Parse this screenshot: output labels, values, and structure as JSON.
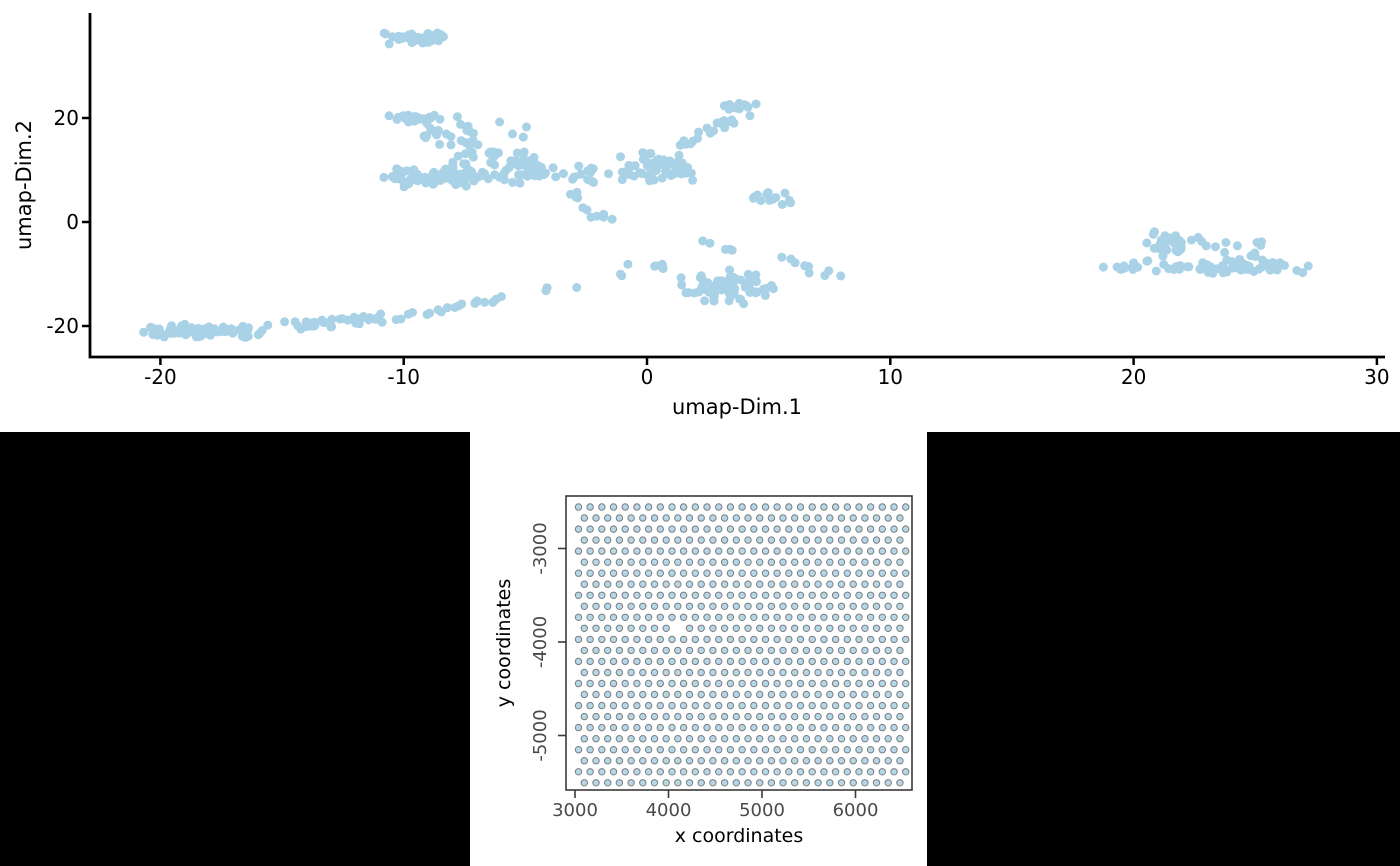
{
  "figure": {
    "description": "Two-panel scatter figure",
    "top_panel_name": "umap-embedding-scatter",
    "bottom_panel_name": "spatial-spot-grid"
  },
  "chart_data": [
    {
      "type": "scatter",
      "title": "",
      "xlabel": "umap-Dim.1",
      "ylabel": "umap-Dim.2",
      "x_ticks": [
        -20,
        -10,
        0,
        10,
        20,
        30
      ],
      "y_ticks": [
        -20,
        0,
        20
      ],
      "xlim": [
        -22.9,
        30.4
      ],
      "ylim": [
        -26,
        40.2
      ],
      "grid": false,
      "legend": false,
      "marker_color": "#a9d2e6",
      "axis_color": "#000000",
      "seed": 7,
      "clusters": [
        {
          "name": "top-blob",
          "shape": "ellipse",
          "n": 40,
          "cx": -9.4,
          "cy": 35.3,
          "rx": 1.45,
          "ry": 1.3
        },
        {
          "name": "upper-band",
          "shape": "ellipse",
          "n": 24,
          "cx": -9.7,
          "cy": 19.9,
          "rx": 1.35,
          "ry": 0.8
        },
        {
          "name": "upper-scatter",
          "shape": "box",
          "n": 20,
          "x": [
            -9.3,
            -6.9
          ],
          "y": [
            14.5,
            19.0
          ]
        },
        {
          "name": "upper-outliers",
          "shape": "box",
          "n": 8,
          "x": [
            -7.9,
            -4.7
          ],
          "y": [
            16.2,
            20.5
          ]
        },
        {
          "name": "left-band-main",
          "shape": "ellipse",
          "n": 90,
          "cx": -8.7,
          "cy": 8.6,
          "rx": 2.8,
          "ry": 2.0
        },
        {
          "name": "left-band-top",
          "shape": "box",
          "n": 26,
          "x": [
            -8.0,
            -4.6
          ],
          "y": [
            10.8,
            13.6
          ]
        },
        {
          "name": "left-band-right",
          "shape": "ellipse",
          "n": 40,
          "cx": -4.7,
          "cy": 9.3,
          "rx": 1.6,
          "ry": 2.1
        },
        {
          "name": "bridge-to-center",
          "shape": "box",
          "n": 12,
          "x": [
            -3.3,
            -1.5
          ],
          "y": [
            7.6,
            11.2
          ]
        },
        {
          "name": "down-trail",
          "shape": "line",
          "n": 11,
          "x1": -3.2,
          "y1": 6.2,
          "x2": -1.6,
          "y2": -0.6,
          "jitter": 0.4
        },
        {
          "name": "center-cluster",
          "shape": "ellipse",
          "n": 58,
          "cx": 0.4,
          "cy": 10.6,
          "rx": 1.7,
          "ry": 3.4
        },
        {
          "name": "arm-up-right",
          "shape": "line",
          "n": 20,
          "x1": 1.3,
          "y1": 14.6,
          "x2": 4.2,
          "y2": 21.2,
          "jitter": 0.5
        },
        {
          "name": "arm-tip",
          "shape": "ellipse",
          "n": 12,
          "cx": 3.7,
          "cy": 22.3,
          "rx": 0.95,
          "ry": 1.1
        },
        {
          "name": "small-cluster-right",
          "shape": "ellipse",
          "n": 13,
          "cx": 5.2,
          "cy": 4.5,
          "rx": 1.05,
          "ry": 1.5
        },
        {
          "name": "bottom-left-dense",
          "shape": "ellipse",
          "n": 80,
          "cx": -18.2,
          "cy": -20.9,
          "rx": 2.7,
          "ry": 1.5
        },
        {
          "name": "bottom-left-mid",
          "shape": "line",
          "n": 38,
          "x1": -15.2,
          "y1": -20.3,
          "x2": -10.4,
          "y2": -18.4,
          "jitter": 0.75
        },
        {
          "name": "rising-trail",
          "shape": "line",
          "n": 22,
          "x1": -9.8,
          "y1": -17.8,
          "x2": -1.8,
          "y2": -11.2,
          "jitter": 0.42
        },
        {
          "name": "lower-middle",
          "shape": "ellipse",
          "n": 72,
          "cx": 3.2,
          "cy": -12.3,
          "rx": 2.3,
          "ry": 3.6
        },
        {
          "name": "lower-middle-left",
          "shape": "box",
          "n": 8,
          "x": [
            -1.2,
            0.7
          ],
          "y": [
            -10.6,
            -7.7
          ]
        },
        {
          "name": "above-lower-middle",
          "shape": "line",
          "n": 5,
          "x1": 1.9,
          "y1": -3.2,
          "x2": 3.4,
          "y2": -5.9,
          "jitter": 0.3
        },
        {
          "name": "right-arm",
          "shape": "line",
          "n": 9,
          "x1": 5.9,
          "y1": -7.1,
          "x2": 7.6,
          "y2": -10.6,
          "jitter": 0.45
        },
        {
          "name": "right-cluster-band",
          "shape": "ellipse",
          "n": 68,
          "cx": 23.4,
          "cy": -8.6,
          "rx": 4.9,
          "ry": 1.6
        },
        {
          "name": "right-cluster-bump",
          "shape": "ellipse",
          "n": 30,
          "cx": 21.7,
          "cy": -4.0,
          "rx": 1.5,
          "ry": 2.6
        },
        {
          "name": "right-cluster-mid",
          "shape": "box",
          "n": 14,
          "x": [
            23.2,
            25.8
          ],
          "y": [
            -8.2,
            -3.4
          ]
        }
      ]
    },
    {
      "type": "scatter",
      "title": "",
      "xlabel": "x coordinates",
      "ylabel": "y coordinates",
      "x_ticks": [
        3000,
        4000,
        5000,
        6000
      ],
      "y_ticks": [
        -3000,
        -4000,
        -5000
      ],
      "xlim": [
        2904,
        6594
      ],
      "ylim": [
        -5572,
        -2439
      ],
      "grid": false,
      "legend": false,
      "boxed_frame": true,
      "tick_label_color": "#4a4a4a",
      "frame_color": "#3a3a3a",
      "marker_fill": "#b4d7e9",
      "marker_stroke": "#7d7d7d",
      "hex_grid": {
        "x_start": 3037,
        "x_step": 125,
        "n_cols_even": 29,
        "n_cols_odd": 28,
        "odd_x_offset": 63,
        "y_start": -2556,
        "y_step": -118,
        "n_rows": 26,
        "missing_cells": [
          {
            "row": 11,
            "col": 8
          }
        ]
      }
    }
  ]
}
